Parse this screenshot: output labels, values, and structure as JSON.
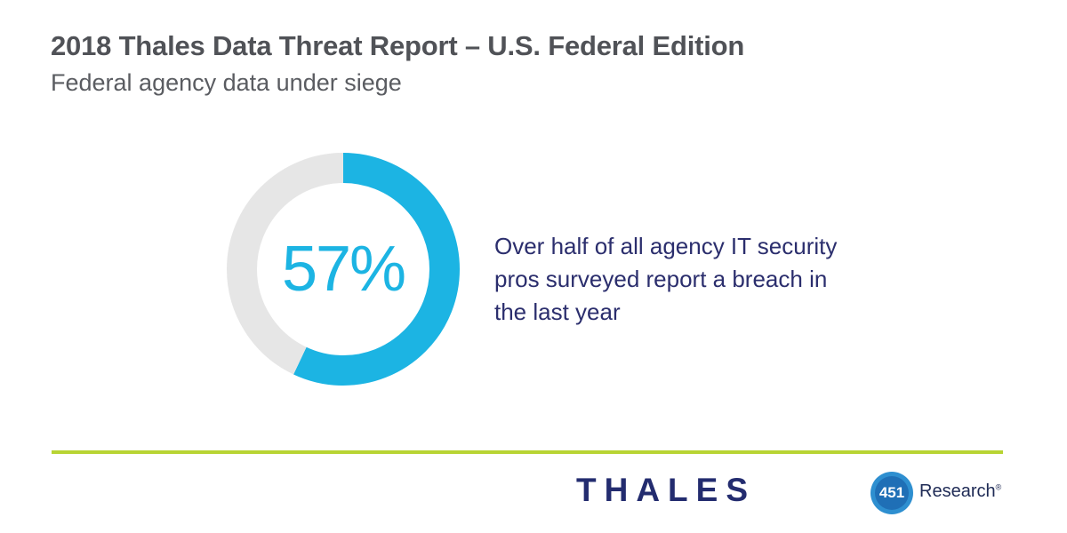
{
  "header": {
    "title": "2018 Thales Data Threat Report – U.S. Federal Edition",
    "subtitle": "Federal agency data under siege"
  },
  "chart_data": {
    "type": "pie",
    "variant": "donut",
    "values": [
      57,
      43
    ],
    "colors": [
      "#1cb4e3",
      "#e6e6e6"
    ],
    "center_label": "57%"
  },
  "description": "Over half of all agency IT security pros surveyed report a breach in the last year",
  "colors": {
    "accent": "#1cb4e3",
    "track": "#e6e6e6",
    "rule": "#b8d433",
    "navy": "#232c6f"
  },
  "footer": {
    "brand": "THALES",
    "partner_number": "451",
    "partner_name": "Research",
    "partner_mark": "®"
  }
}
